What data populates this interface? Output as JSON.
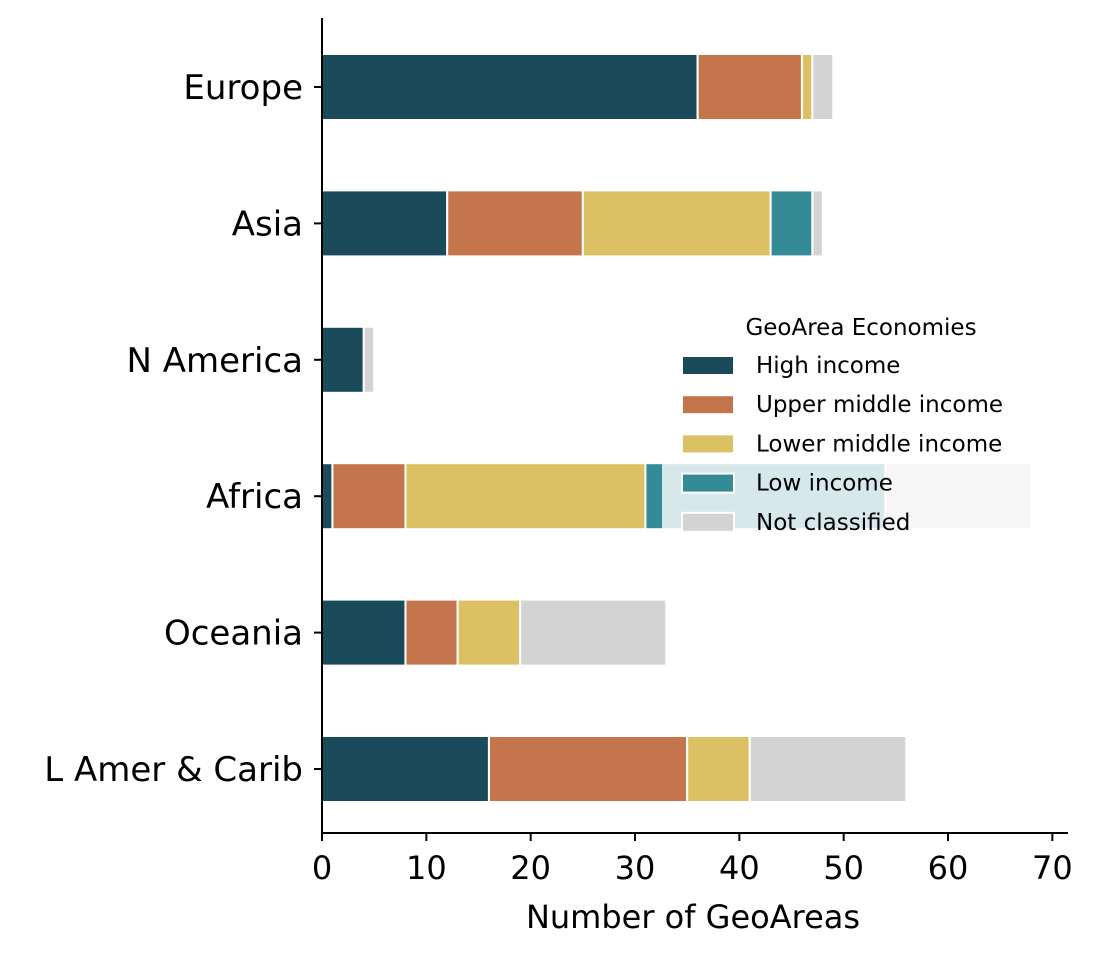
{
  "chart_data": {
    "type": "bar",
    "orientation": "horizontal",
    "stacked": true,
    "categories": [
      "Europe",
      "Asia",
      "N America",
      "Africa",
      "Oceania",
      "L Amer & Carib"
    ],
    "series": [
      {
        "name": "High income",
        "color": "#1b4a5a",
        "values": [
          36,
          12,
          4,
          1,
          8,
          16
        ]
      },
      {
        "name": "Upper middle income",
        "color": "#c5754b",
        "values": [
          10,
          13,
          0,
          7,
          5,
          19
        ]
      },
      {
        "name": "Lower middle income",
        "color": "#dbc163",
        "values": [
          1,
          18,
          0,
          23,
          6,
          6
        ]
      },
      {
        "name": "Low income",
        "color": "#358b95",
        "values": [
          0,
          4,
          0,
          23,
          0,
          0
        ]
      },
      {
        "name": "Not classified",
        "color": "#d3d3d3",
        "values": [
          2,
          1,
          1,
          14,
          14,
          15
        ]
      }
    ],
    "xlabel": "Number of GeoAreas",
    "ylabel": "",
    "xlim": [
      0,
      71.5
    ],
    "xticks": [
      0,
      10,
      20,
      30,
      40,
      50,
      60,
      70
    ],
    "grid": false,
    "legend": {
      "title": "GeoArea Economies",
      "position": "center-right"
    }
  }
}
